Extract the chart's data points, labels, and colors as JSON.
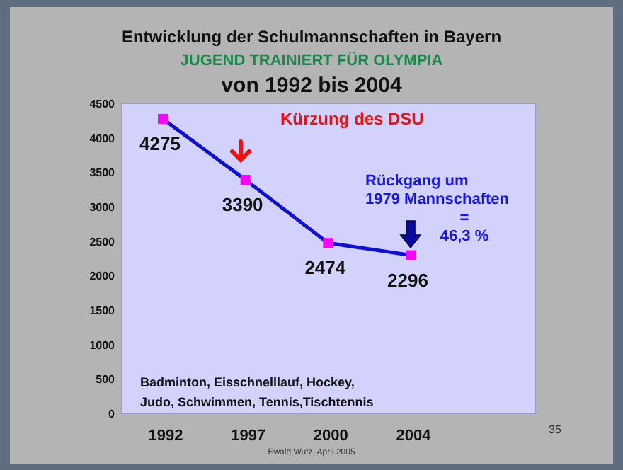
{
  "chart_data": {
    "type": "line",
    "title": "Entwicklung der Schulmannschaften in Bayern",
    "subtitle": "JUGEND TRAINIERT FÜR OLYMPIA",
    "categories": [
      "1992",
      "1997",
      "2000",
      "2004"
    ],
    "series": [
      {
        "color": "#1010d0",
        "values": [
          4275,
          3390,
          2474,
          2296
        ]
      }
    ],
    "marker": "square",
    "data_labels": true,
    "grid": false,
    "ylim": [
      0,
      4500
    ],
    "yticks": [
      0,
      500,
      1000,
      1500,
      2000,
      2500,
      3000,
      3500,
      4000,
      4500
    ],
    "annotations": [
      "von 1992 bis 2004",
      "Kürzung des DSU",
      "Rückgang um\n1979  Mannschaften\n=\n46,3 %",
      "Badminton, Eisschnelllauf, Hockey,\nJudo, Schwimmen, Tennis,Tischtennis",
      "35",
      "Ewald  Wutz, April 2005"
    ]
  }
}
